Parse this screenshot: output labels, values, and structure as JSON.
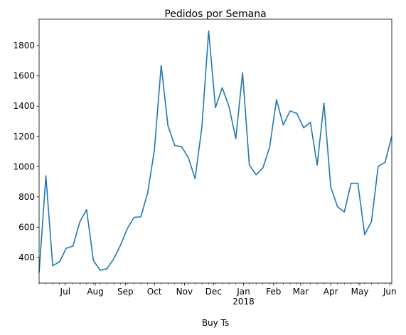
{
  "chart_data": {
    "type": "line",
    "title": "Pedidos por Semana",
    "xlabel": "Buy Ts",
    "ylabel": "",
    "grid": false,
    "legend": "none",
    "line_color": "#1f77b4",
    "x_start": "2017-06-04",
    "x_end": "2018-06-03",
    "ylim": [
      230,
      1975
    ],
    "y_ticks": [
      400,
      600,
      800,
      1000,
      1200,
      1400,
      1600,
      1800
    ],
    "x_major_ticks": [
      {
        "date": "2017-06-01",
        "label": "Jun"
      },
      {
        "date": "2017-07-01",
        "label": "Jul"
      },
      {
        "date": "2017-08-01",
        "label": "Aug"
      },
      {
        "date": "2017-09-01",
        "label": "Sep"
      },
      {
        "date": "2017-10-01",
        "label": "Oct"
      },
      {
        "date": "2017-11-01",
        "label": "Nov"
      },
      {
        "date": "2017-12-01",
        "label": "Dec"
      },
      {
        "date": "2018-01-01",
        "label": "Jan"
      },
      {
        "date": "2018-02-01",
        "label": "Feb"
      },
      {
        "date": "2018-03-01",
        "label": "Mar"
      },
      {
        "date": "2018-04-01",
        "label": "Apr"
      },
      {
        "date": "2018-05-01",
        "label": "May"
      },
      {
        "date": "2018-06-01",
        "label": "Jun"
      }
    ],
    "year_label": {
      "date": "2018-01-01",
      "label": "2018"
    },
    "x": [
      "2017-06-04",
      "2017-06-11",
      "2017-06-18",
      "2017-06-25",
      "2017-07-02",
      "2017-07-09",
      "2017-07-16",
      "2017-07-23",
      "2017-07-30",
      "2017-08-06",
      "2017-08-13",
      "2017-08-20",
      "2017-08-27",
      "2017-09-03",
      "2017-09-10",
      "2017-09-17",
      "2017-09-24",
      "2017-10-01",
      "2017-10-08",
      "2017-10-15",
      "2017-10-22",
      "2017-10-29",
      "2017-11-05",
      "2017-11-12",
      "2017-11-19",
      "2017-11-26",
      "2017-12-03",
      "2017-12-10",
      "2017-12-17",
      "2017-12-24",
      "2017-12-31",
      "2018-01-07",
      "2018-01-14",
      "2018-01-21",
      "2018-01-28",
      "2018-02-04",
      "2018-02-11",
      "2018-02-18",
      "2018-02-25",
      "2018-03-04",
      "2018-03-11",
      "2018-03-18",
      "2018-03-25",
      "2018-04-01",
      "2018-04-08",
      "2018-04-15",
      "2018-04-22",
      "2018-04-29",
      "2018-05-06",
      "2018-05-13",
      "2018-05-20",
      "2018-05-27",
      "2018-06-03"
    ],
    "series": [
      {
        "values": [
          300,
          940,
          345,
          370,
          460,
          475,
          635,
          715,
          380,
          315,
          325,
          390,
          480,
          590,
          665,
          668,
          825,
          1110,
          1670,
          1270,
          1140,
          1132,
          1060,
          920,
          1262,
          1897,
          1390,
          1522,
          1397,
          1185,
          1621,
          1010,
          946,
          992,
          1130,
          1443,
          1275,
          1368,
          1352,
          1257,
          1293,
          1010,
          1420,
          865,
          735,
          700,
          890,
          890,
          550,
          637,
          1003,
          1028,
          1200
        ]
      }
    ]
  }
}
